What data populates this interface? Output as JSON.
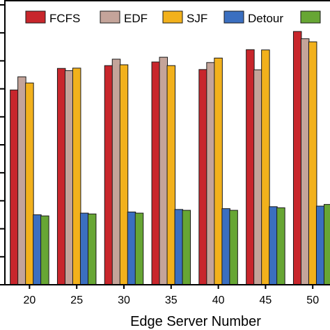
{
  "chart_data": {
    "type": "bar",
    "title": "",
    "xlabel": "Edge Server Number",
    "ylabel": "",
    "categories": [
      "20",
      "25",
      "30",
      "35",
      "40",
      "45",
      "50"
    ],
    "ylim": [
      0,
      100
    ],
    "series": [
      {
        "name": "FCFS",
        "color": "#c8262c",
        "values": [
          69.6,
          77.3,
          78.3,
          79.6,
          76.9,
          84.0,
          90.5
        ]
      },
      {
        "name": "EDF",
        "color": "#c4a49a",
        "values": [
          74.3,
          76.5,
          80.6,
          81.3,
          79.4,
          76.8,
          87.9
        ]
      },
      {
        "name": "SJF",
        "color": "#f2b11c",
        "values": [
          72.1,
          77.4,
          78.6,
          78.3,
          81.0,
          83.9,
          86.8
        ]
      },
      {
        "name": "Detour",
        "color": "#3b6fc0",
        "values": [
          25.0,
          25.6,
          26.0,
          26.9,
          27.2,
          27.9,
          28.1
        ]
      },
      {
        "name": "",
        "color": "#67a634",
        "values": [
          24.6,
          25.3,
          25.6,
          26.6,
          26.6,
          27.5,
          28.7
        ]
      }
    ],
    "legend": {
      "position": "top",
      "orientation": "horizontal"
    },
    "grid": false
  }
}
